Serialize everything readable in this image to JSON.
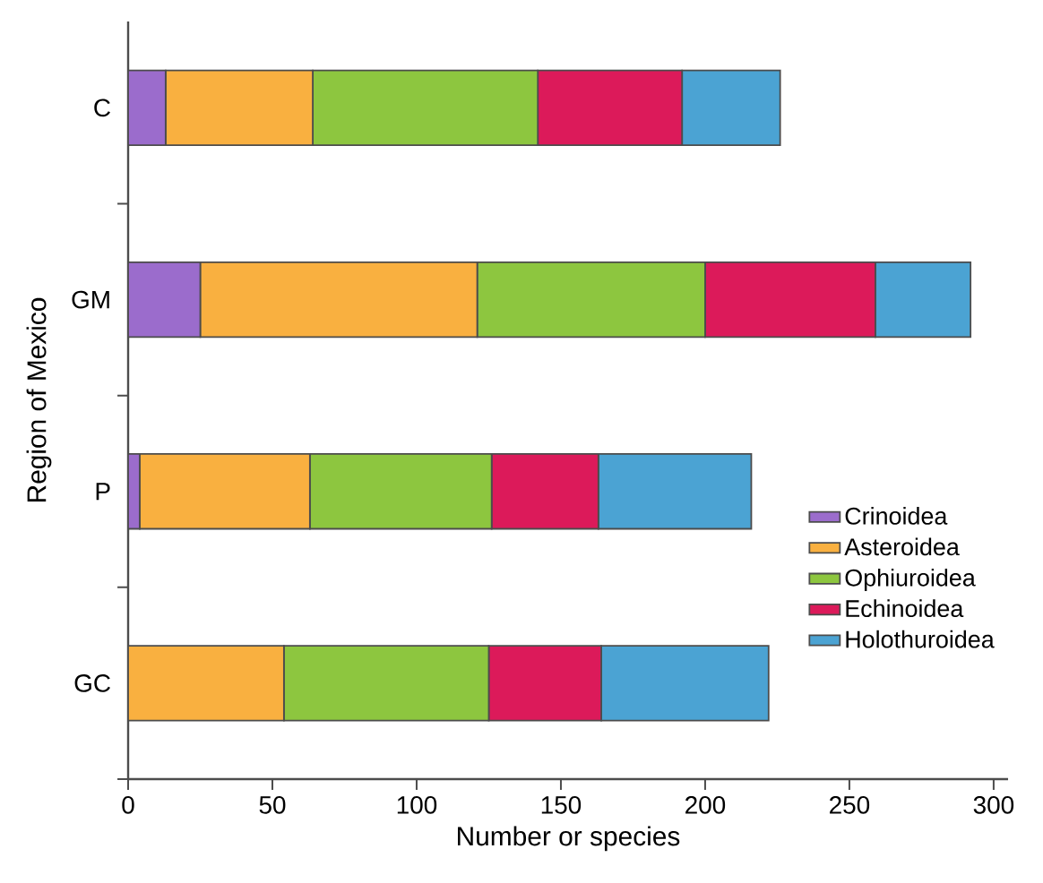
{
  "chart_data": {
    "type": "bar",
    "orientation": "horizontal",
    "stacked": true,
    "xlabel": "Number or species",
    "ylabel": "Region of Mexico",
    "categories": [
      "C",
      "GM",
      "P",
      "GC"
    ],
    "series": [
      {
        "name": "Crinoidea",
        "color": "#9b6ccc",
        "values": [
          13,
          25,
          4,
          0
        ]
      },
      {
        "name": "Asteroidea",
        "color": "#f9b040",
        "values": [
          51,
          96,
          59,
          54
        ]
      },
      {
        "name": "Ophiuroidea",
        "color": "#8dc63f",
        "values": [
          78,
          79,
          63,
          71
        ]
      },
      {
        "name": "Echinoidea",
        "color": "#dc1a5a",
        "values": [
          50,
          59,
          37,
          39
        ]
      },
      {
        "name": "Holothuroidea",
        "color": "#4ba3d3",
        "values": [
          34,
          33,
          53,
          58
        ]
      }
    ],
    "xlim": [
      0,
      305
    ],
    "xticks": [
      0,
      50,
      100,
      150,
      200,
      250,
      300
    ],
    "legend": "bottom right",
    "grid": false
  }
}
